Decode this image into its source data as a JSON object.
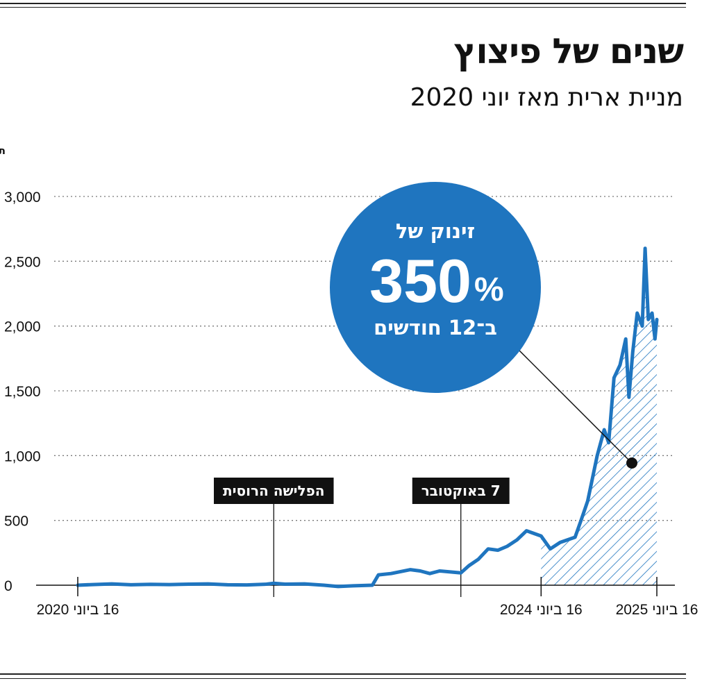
{
  "header": {
    "title": "שנים של פיצוץ",
    "subtitle": "מניית ארית מאז יוני 2020"
  },
  "colors": {
    "line": "#1f75bf",
    "bubble": "#1f75bf",
    "annotation_box": "#111111",
    "grid": "#777777"
  },
  "chart_data": {
    "type": "line",
    "title": "שנים של פיצוץ",
    "subtitle": "מניית ארית מאז יוני 2020",
    "ylabel": "תשואה באחוזים",
    "ylim": [
      0,
      3000
    ],
    "yticks": [
      "3,000",
      "2,500",
      "2,000",
      "1,500",
      "1,000",
      "500",
      "0"
    ],
    "yticks_values": [
      3000,
      2500,
      2000,
      1500,
      1000,
      500,
      0
    ],
    "xticks": [
      "16 ביוני 2020",
      "16 ביוני 2024",
      "16 ביוני 2025"
    ],
    "xticks_values": [
      "2020-06-16",
      "2024-06-16",
      "2025-06-16"
    ],
    "grid": true,
    "series": [
      {
        "values": [
          [
            "2020-06-16",
            0
          ],
          [
            "2020-08-01",
            5
          ],
          [
            "2020-10-01",
            10
          ],
          [
            "2020-12-01",
            3
          ],
          [
            "2021-02-01",
            7
          ],
          [
            "2021-04-01",
            5
          ],
          [
            "2021-06-01",
            8
          ],
          [
            "2021-08-01",
            10
          ],
          [
            "2021-10-01",
            3
          ],
          [
            "2021-12-01",
            2
          ],
          [
            "2022-02-01",
            8
          ],
          [
            "2022-02-24",
            15
          ],
          [
            "2022-04-01",
            8
          ],
          [
            "2022-06-01",
            10
          ],
          [
            "2022-08-01",
            0
          ],
          [
            "2022-09-15",
            -10
          ],
          [
            "2022-11-01",
            -5
          ],
          [
            "2023-01-01",
            0
          ],
          [
            "2023-01-20",
            80
          ],
          [
            "2023-03-01",
            90
          ],
          [
            "2023-05-01",
            120
          ],
          [
            "2023-06-01",
            110
          ],
          [
            "2023-07-01",
            90
          ],
          [
            "2023-08-01",
            110
          ],
          [
            "2023-10-07",
            95
          ],
          [
            "2023-11-01",
            150
          ],
          [
            "2023-12-01",
            200
          ],
          [
            "2024-01-01",
            280
          ],
          [
            "2024-02-01",
            270
          ],
          [
            "2024-03-01",
            300
          ],
          [
            "2024-04-01",
            350
          ],
          [
            "2024-05-01",
            420
          ],
          [
            "2024-06-16",
            380
          ],
          [
            "2024-07-15",
            280
          ],
          [
            "2024-08-15",
            330
          ],
          [
            "2024-10-01",
            370
          ],
          [
            "2024-10-20",
            500
          ],
          [
            "2024-11-10",
            650
          ],
          [
            "2024-12-10",
            1000
          ],
          [
            "2025-01-01",
            1200
          ],
          [
            "2025-01-15",
            1100
          ],
          [
            "2025-02-01",
            1600
          ],
          [
            "2025-02-20",
            1700
          ],
          [
            "2025-03-10",
            1900
          ],
          [
            "2025-03-20",
            1450
          ],
          [
            "2025-04-01",
            1800
          ],
          [
            "2025-04-15",
            2100
          ],
          [
            "2025-05-01",
            2000
          ],
          [
            "2025-05-10",
            2600
          ],
          [
            "2025-05-20",
            2050
          ],
          [
            "2025-06-01",
            2100
          ],
          [
            "2025-06-10",
            1900
          ],
          [
            "2025-06-16",
            2050
          ]
        ]
      }
    ],
    "shaded_range": [
      "2024-06-16",
      "2025-06-16"
    ],
    "event_markers": [
      {
        "date": "2022-02-24",
        "label": "הפלישה הרוסית"
      },
      {
        "date": "2023-10-07",
        "label": "7 באוקטובר"
      }
    ],
    "callout": {
      "top": "זינוק של",
      "value": "350",
      "unit": "%",
      "bottom": "ב־12 חודשים"
    }
  }
}
